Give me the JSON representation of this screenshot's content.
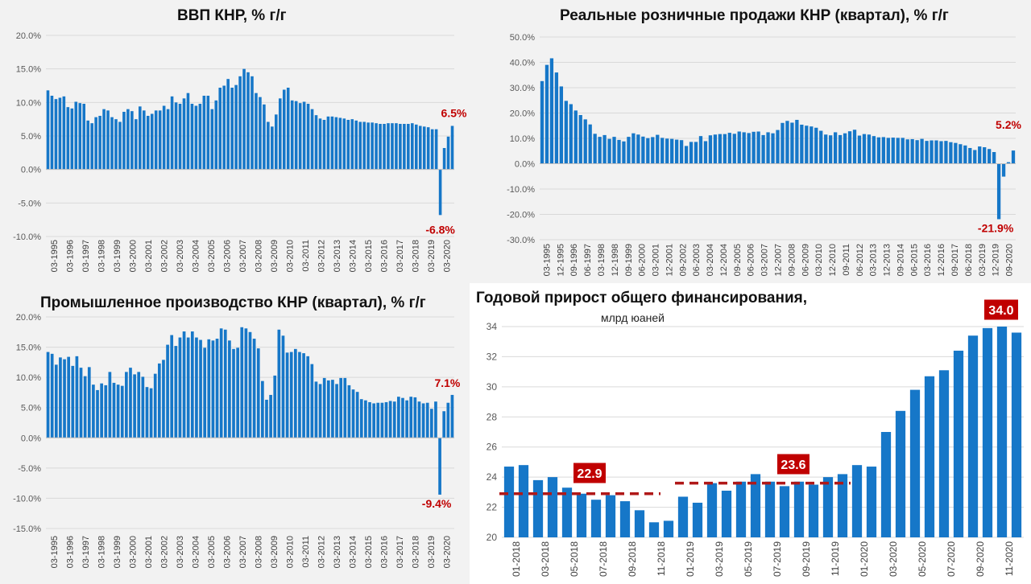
{
  "colors": {
    "bar": "#1677c8",
    "label": "#c00000",
    "highlight_box": "#c00000",
    "dash": "#b01818"
  },
  "chart_data": [
    {
      "id": "gdp",
      "type": "bar",
      "title": "ВВП КНР, % г/г",
      "ylim": [
        -10,
        20
      ],
      "yticks": [
        "20.0%",
        "15.0%",
        "10.0%",
        "5.0%",
        "0.0%",
        "-5.0%",
        "-10.0%"
      ],
      "ytick_values": [
        20,
        15,
        10,
        5,
        0,
        -5,
        -10
      ],
      "x_tick_labels": [
        "03-1995",
        "03-1996",
        "03-1997",
        "03-1998",
        "03-1999",
        "03-2000",
        "03-2001",
        "03-2002",
        "03-2003",
        "03-2004",
        "03-2005",
        "03-2006",
        "03-2007",
        "03-2008",
        "03-2009",
        "03-2010",
        "03-2011",
        "03-2012",
        "03-2013",
        "03-2014",
        "03-2015",
        "03-2016",
        "03-2017",
        "03-2018",
        "03-2019",
        "03-2020"
      ],
      "values": [
        11.8,
        11.0,
        10.5,
        10.7,
        10.9,
        9.3,
        9.1,
        10.1,
        9.9,
        9.8,
        7.3,
        6.9,
        7.8,
        8.0,
        9.0,
        8.8,
        7.8,
        7.5,
        7.1,
        8.6,
        9.0,
        8.7,
        7.5,
        9.4,
        8.8,
        8.0,
        8.3,
        8.8,
        8.8,
        9.5,
        9.0,
        10.9,
        10.0,
        9.8,
        10.6,
        11.4,
        9.8,
        9.5,
        9.8,
        11.0,
        11.0,
        9.0,
        10.3,
        12.2,
        12.5,
        13.5,
        12.2,
        12.6,
        13.9,
        15.0,
        14.5,
        13.9,
        11.4,
        10.8,
        9.7,
        7.1,
        6.4,
        8.2,
        10.6,
        11.9,
        12.2,
        10.3,
        10.2,
        9.9,
        10.1,
        9.8,
        9.0,
        8.1,
        7.6,
        7.4,
        7.9,
        7.9,
        7.8,
        7.7,
        7.6,
        7.4,
        7.5,
        7.3,
        7.1,
        7.1,
        7.0,
        7.0,
        6.9,
        6.8,
        6.8,
        6.9,
        6.9,
        6.9,
        6.8,
        6.8,
        6.8,
        6.9,
        6.7,
        6.5,
        6.4,
        6.3,
        6.0,
        6.0,
        -6.8,
        3.2,
        4.9,
        6.5
      ],
      "annotations": [
        {
          "text": "6.5%"
        },
        {
          "text": "-6.8%"
        }
      ]
    },
    {
      "id": "retail",
      "type": "bar",
      "title": "Реальные розничные продажи КНР (квартал), % г/г",
      "ylim": [
        -30,
        50
      ],
      "yticks": [
        "50.0%",
        "40.0%",
        "30.0%",
        "20.0%",
        "10.0%",
        "0.0%",
        "-10.0%",
        "-20.0%",
        "-30.0%"
      ],
      "ytick_values": [
        50,
        40,
        30,
        20,
        10,
        0,
        -10,
        -20,
        -30
      ],
      "x_tick_labels": [
        "03-1995",
        "12-1995",
        "09-1996",
        "06-1997",
        "03-1998",
        "12-1998",
        "09-1999",
        "06-2000",
        "03-2001",
        "12-2001",
        "09-2002",
        "06-2003",
        "03-2004",
        "12-2004",
        "09-2005",
        "06-2006",
        "03-2007",
        "12-2007",
        "09-2008",
        "06-2009",
        "03-2010",
        "12-2010",
        "09-2011",
        "06-2012",
        "03-2013",
        "12-2013",
        "09-2014",
        "06-2015",
        "03-2016",
        "12-2016",
        "09-2017",
        "06-2018",
        "03-2019",
        "12-2019",
        "09-2020"
      ],
      "values": [
        32.6,
        39.0,
        41.6,
        36.0,
        30.5,
        24.8,
        23.5,
        21.0,
        19.2,
        17.5,
        15.5,
        11.8,
        10.6,
        11.3,
        9.8,
        10.6,
        9.4,
        8.8,
        10.6,
        12.0,
        11.5,
        10.7,
        10.1,
        10.5,
        11.4,
        10.2,
        9.9,
        9.8,
        9.5,
        9.3,
        7.0,
        8.6,
        8.6,
        10.9,
        8.9,
        11.2,
        11.5,
        11.7,
        11.7,
        12.2,
        11.8,
        12.7,
        12.4,
        12.1,
        12.6,
        12.7,
        11.3,
        12.4,
        12.0,
        13.3,
        16.1,
        16.9,
        16.2,
        17.3,
        15.4,
        15.0,
        14.7,
        14.2,
        13.0,
        11.5,
        11.2,
        12.4,
        11.3,
        12.0,
        12.8,
        13.4,
        11.1,
        11.7,
        11.5,
        10.9,
        10.4,
        10.5,
        10.2,
        10.3,
        10.2,
        10.2,
        9.6,
        9.7,
        9.3,
        9.8,
        9.0,
        9.2,
        9.2,
        8.9,
        9.0,
        8.5,
        8.2,
        7.7,
        7.2,
        6.2,
        5.4,
        6.8,
        6.5,
        5.8,
        4.6,
        -21.9,
        -5.1,
        0.6,
        5.2
      ],
      "annotations": [
        {
          "text": "5.2%"
        },
        {
          "text": "-21.9%"
        }
      ]
    },
    {
      "id": "industry",
      "type": "bar",
      "title": "Промышленное производство КНР (квартал), % г/г",
      "ylim": [
        -15,
        20
      ],
      "yticks": [
        "20.0%",
        "15.0%",
        "10.0%",
        "5.0%",
        "0.0%",
        "-5.0%",
        "-10.0%",
        "-15.0%"
      ],
      "ytick_values": [
        20,
        15,
        10,
        5,
        0,
        -5,
        -10,
        -15
      ],
      "x_tick_labels": [
        "03-1995",
        "03-1996",
        "03-1997",
        "03-1998",
        "03-1999",
        "03-2000",
        "03-2001",
        "03-2002",
        "03-2003",
        "03-2004",
        "03-2005",
        "03-2006",
        "03-2007",
        "03-2008",
        "03-2009",
        "03-2010",
        "03-2011",
        "03-2012",
        "03-2013",
        "03-2014",
        "03-2015",
        "03-2016",
        "03-2017",
        "03-2018",
        "03-2019",
        "03-2020"
      ],
      "values": [
        14.2,
        13.9,
        12.1,
        13.3,
        13.0,
        13.4,
        11.9,
        13.5,
        11.6,
        10.2,
        11.7,
        8.8,
        7.9,
        9.0,
        8.7,
        10.9,
        9.1,
        8.8,
        8.6,
        10.9,
        11.6,
        10.5,
        10.9,
        10.1,
        8.4,
        8.2,
        10.6,
        12.3,
        12.9,
        15.4,
        17.0,
        15.2,
        16.6,
        17.6,
        16.6,
        17.6,
        16.6,
        16.2,
        14.9,
        16.3,
        16.1,
        16.4,
        18.1,
        17.9,
        16.1,
        14.7,
        14.9,
        18.3,
        18.1,
        17.5,
        16.4,
        14.8,
        9.4,
        6.3,
        7.1,
        10.3,
        17.9,
        16.9,
        14.1,
        14.2,
        14.7,
        14.2,
        14.0,
        13.5,
        12.2,
        9.3,
        8.9,
        9.9,
        9.5,
        9.6,
        8.9,
        9.9,
        9.9,
        8.7,
        8.0,
        7.6,
        6.4,
        6.2,
        5.9,
        5.7,
        5.8,
        5.8,
        5.9,
        6.1,
        6.0,
        6.8,
        6.6,
        6.2,
        6.8,
        6.7,
        6.0,
        5.7,
        5.8,
        4.8,
        6.0,
        -9.4,
        4.4,
        5.8,
        7.1
      ],
      "annotations": [
        {
          "text": "7.1%"
        },
        {
          "text": "-9.4%"
        }
      ]
    },
    {
      "id": "financing",
      "type": "bar",
      "title": "Годовой прирост общего финансирования,",
      "subtitle": "млрд юаней",
      "ylim": [
        20,
        34
      ],
      "yticks": [
        "34",
        "32",
        "30",
        "28",
        "26",
        "24",
        "22",
        "20"
      ],
      "ytick_values": [
        34,
        32,
        30,
        28,
        26,
        24,
        22,
        20
      ],
      "x_tick_labels": [
        "01-2018",
        "03-2018",
        "05-2018",
        "07-2018",
        "09-2018",
        "11-2018",
        "01-2019",
        "03-2019",
        "05-2019",
        "07-2019",
        "09-2019",
        "11-2019",
        "01-2020",
        "03-2020",
        "05-2020",
        "07-2020",
        "09-2020",
        "11-2020"
      ],
      "values": [
        24.7,
        24.8,
        23.8,
        24.0,
        23.3,
        22.9,
        22.5,
        22.8,
        22.4,
        21.8,
        21.0,
        21.1,
        22.7,
        22.3,
        23.6,
        23.1,
        23.7,
        24.2,
        23.7,
        23.4,
        23.7,
        23.5,
        24.0,
        24.2,
        24.8,
        24.7,
        27.0,
        28.4,
        29.8,
        30.7,
        31.1,
        32.4,
        33.4,
        33.9,
        34.0,
        33.6
      ],
      "averages": [
        {
          "label": "22.9",
          "value": 22.9
        },
        {
          "label": "23.6",
          "value": 23.6
        }
      ],
      "annotations": [
        {
          "text": "34.0"
        }
      ]
    }
  ]
}
